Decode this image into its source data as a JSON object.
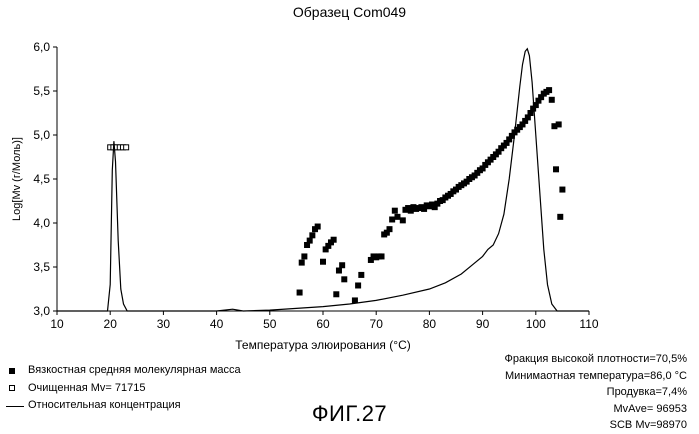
{
  "chart_data": {
    "type": "scatter",
    "title": "Образец Com049",
    "xlabel": "Температура элюирования (°С)",
    "ylabel": "Log[Mv (г/Моль)]",
    "xlim": [
      10,
      110
    ],
    "ylim": [
      3.0,
      6.0
    ],
    "xticks": [
      "10",
      "20",
      "30",
      "40",
      "50",
      "60",
      "70",
      "80",
      "90",
      "100",
      "110"
    ],
    "yticks": [
      "3,0",
      "3,5",
      "4,0",
      "4,5",
      "5,0",
      "5,5",
      "6,0"
    ],
    "grid": false,
    "series": [
      {
        "name": "Вязкостная средняя молекулярная масса",
        "marker": "filled-square",
        "points": [
          [
            55.6,
            3.21
          ],
          [
            56.0,
            3.55
          ],
          [
            56.5,
            3.62
          ],
          [
            57.0,
            3.75
          ],
          [
            57.5,
            3.8
          ],
          [
            58.0,
            3.86
          ],
          [
            58.5,
            3.93
          ],
          [
            59.0,
            3.96
          ],
          [
            60.0,
            3.56
          ],
          [
            60.5,
            3.7
          ],
          [
            61.0,
            3.74
          ],
          [
            61.5,
            3.78
          ],
          [
            62.0,
            3.81
          ],
          [
            62.5,
            3.19
          ],
          [
            63.0,
            3.46
          ],
          [
            63.6,
            3.52
          ],
          [
            64.0,
            3.36
          ],
          [
            66.0,
            3.12
          ],
          [
            66.6,
            3.29
          ],
          [
            67.2,
            3.41
          ],
          [
            69.0,
            3.58
          ],
          [
            69.5,
            3.62
          ],
          [
            70.0,
            3.61
          ],
          [
            70.5,
            3.62
          ],
          [
            71.0,
            3.62
          ],
          [
            71.5,
            3.87
          ],
          [
            72.0,
            3.89
          ],
          [
            72.5,
            3.93
          ],
          [
            73.0,
            4.04
          ],
          [
            73.5,
            4.14
          ],
          [
            74.0,
            4.07
          ],
          [
            75.0,
            4.03
          ],
          [
            75.5,
            4.15
          ],
          [
            76.0,
            4.17
          ],
          [
            76.5,
            4.14
          ],
          [
            77.0,
            4.18
          ],
          [
            77.5,
            4.16
          ],
          [
            78.0,
            4.17
          ],
          [
            78.5,
            4.18
          ],
          [
            79.0,
            4.16
          ],
          [
            79.5,
            4.2
          ],
          [
            80.0,
            4.19
          ],
          [
            80.5,
            4.21
          ],
          [
            81.0,
            4.18
          ],
          [
            81.5,
            4.22
          ],
          [
            82.0,
            4.25
          ],
          [
            82.5,
            4.26
          ],
          [
            83.0,
            4.29
          ],
          [
            83.5,
            4.31
          ],
          [
            84.0,
            4.33
          ],
          [
            84.5,
            4.36
          ],
          [
            85.0,
            4.38
          ],
          [
            85.5,
            4.41
          ],
          [
            86.0,
            4.43
          ],
          [
            86.5,
            4.45
          ],
          [
            87.0,
            4.47
          ],
          [
            87.5,
            4.5
          ],
          [
            88.0,
            4.52
          ],
          [
            88.5,
            4.54
          ],
          [
            89.0,
            4.57
          ],
          [
            89.5,
            4.6
          ],
          [
            90.0,
            4.62
          ],
          [
            90.5,
            4.66
          ],
          [
            91.0,
            4.69
          ],
          [
            91.5,
            4.72
          ],
          [
            92.0,
            4.75
          ],
          [
            92.5,
            4.78
          ],
          [
            93.0,
            4.81
          ],
          [
            93.5,
            4.85
          ],
          [
            94.0,
            4.88
          ],
          [
            94.5,
            4.91
          ],
          [
            95.0,
            4.95
          ],
          [
            95.5,
            4.99
          ],
          [
            96.0,
            5.03
          ],
          [
            96.5,
            5.06
          ],
          [
            97.0,
            5.09
          ],
          [
            97.5,
            5.12
          ],
          [
            98.0,
            5.16
          ],
          [
            98.5,
            5.2
          ],
          [
            99.0,
            5.25
          ],
          [
            99.5,
            5.3
          ],
          [
            100.0,
            5.34
          ],
          [
            100.5,
            5.39
          ],
          [
            101.0,
            5.43
          ],
          [
            101.5,
            5.47
          ],
          [
            102.0,
            5.49
          ],
          [
            102.5,
            5.51
          ],
          [
            103.0,
            5.4
          ],
          [
            103.5,
            5.1
          ],
          [
            103.8,
            4.61
          ],
          [
            104.3,
            5.12
          ],
          [
            104.6,
            4.07
          ],
          [
            105.0,
            4.38
          ]
        ]
      },
      {
        "name": "Очищенная Mv= 71715",
        "marker": "open-square",
        "points": [
          [
            20.0,
            4.86
          ],
          [
            20.6,
            4.86
          ],
          [
            21.2,
            4.86
          ],
          [
            21.8,
            4.86
          ],
          [
            22.4,
            4.86
          ],
          [
            23.0,
            4.86
          ]
        ]
      },
      {
        "name": "Относительная концентрация",
        "marker": "line",
        "points": [
          [
            10,
            3.0
          ],
          [
            19.5,
            3.0
          ],
          [
            20.0,
            3.3
          ],
          [
            20.4,
            4.6
          ],
          [
            20.7,
            4.93
          ],
          [
            21.0,
            4.7
          ],
          [
            21.5,
            3.8
          ],
          [
            22.0,
            3.25
          ],
          [
            22.5,
            3.08
          ],
          [
            23.2,
            3.0
          ],
          [
            40,
            3.0
          ],
          [
            43,
            3.02
          ],
          [
            45,
            3.0
          ],
          [
            50,
            3.01
          ],
          [
            55,
            3.03
          ],
          [
            60,
            3.05
          ],
          [
            65,
            3.08
          ],
          [
            70,
            3.12
          ],
          [
            75,
            3.18
          ],
          [
            80,
            3.25
          ],
          [
            83,
            3.32
          ],
          [
            86,
            3.42
          ],
          [
            88,
            3.52
          ],
          [
            90,
            3.62
          ],
          [
            91,
            3.7
          ],
          [
            92,
            3.75
          ],
          [
            93,
            3.88
          ],
          [
            94,
            4.1
          ],
          [
            95,
            4.5
          ],
          [
            96,
            5.0
          ],
          [
            97,
            5.55
          ],
          [
            97.5,
            5.8
          ],
          [
            98.0,
            5.95
          ],
          [
            98.4,
            5.98
          ],
          [
            98.8,
            5.9
          ],
          [
            99.3,
            5.6
          ],
          [
            100,
            5.0
          ],
          [
            100.8,
            4.3
          ],
          [
            101.5,
            3.7
          ],
          [
            102.2,
            3.3
          ],
          [
            103.0,
            3.08
          ],
          [
            104.0,
            3.0
          ],
          [
            110,
            3.0
          ]
        ]
      }
    ]
  },
  "legend": {
    "items": [
      {
        "label": "Вязкостная средняя молекулярная масса",
        "symbol": "filled-square"
      },
      {
        "label": "Очищенная Mv= 71715",
        "symbol": "open-square"
      },
      {
        "label": "Относительная концентрация",
        "symbol": "line"
      }
    ]
  },
  "stats": {
    "high_density_fraction": "Фракция высокой плотности=70,5%",
    "min_temperature": "Минимаотная температура=86,0 °С",
    "purge": "Продувка=7,4%",
    "mv_ave": "MvAve= 96953",
    "scb_mv": "SCB Mv=98970"
  },
  "figure_label": "ФИГ.27"
}
